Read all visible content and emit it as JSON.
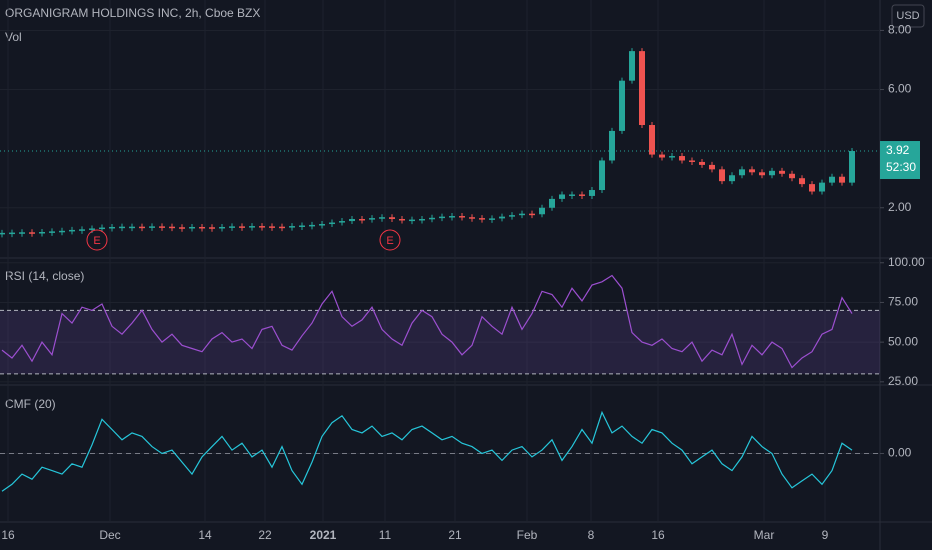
{
  "chart_data": [
    {
      "type": "candle",
      "title": "ORGANIGRAM HOLDINGS INC, 2h, Cboe BZX",
      "volume_label": "Vol",
      "currency": "USD",
      "countdown": "52:30",
      "series": [
        {
          "name": "ORGANIGRAM HOLDINGS INC",
          "up_color": "#26a69a",
          "down_color": "#ef5350",
          "values": [
            1.15,
            1.16,
            1.17,
            1.16,
            1.18,
            1.2,
            1.22,
            1.25,
            1.27,
            1.3,
            1.33,
            1.35,
            1.36,
            1.36,
            1.35,
            1.37,
            1.36,
            1.34,
            1.33,
            1.35,
            1.34,
            1.33,
            1.35,
            1.37,
            1.36,
            1.38,
            1.37,
            1.36,
            1.35,
            1.38,
            1.4,
            1.42,
            1.45,
            1.5,
            1.55,
            1.62,
            1.6,
            1.65,
            1.68,
            1.62,
            1.58,
            1.6,
            1.62,
            1.66,
            1.7,
            1.72,
            1.68,
            1.65,
            1.62,
            1.64,
            1.7,
            1.75,
            1.8,
            1.78,
            2.0,
            2.3,
            2.45,
            2.45,
            2.4,
            2.6,
            3.6,
            4.6,
            6.3,
            7.3,
            4.8,
            3.8,
            3.7,
            3.75,
            3.6,
            3.55,
            3.45,
            3.3,
            2.9,
            3.1,
            3.3,
            3.2,
            3.1,
            3.25,
            3.15,
            3.0,
            2.8,
            2.55,
            2.85,
            3.05,
            2.85,
            3.92
          ]
        }
      ],
      "earnings_markers": [
        {
          "x": 9.5,
          "label": "E"
        },
        {
          "x": 38.8,
          "label": "E"
        }
      ],
      "xlim": [
        0,
        86
      ],
      "ylim": [
        0.3,
        9.03
      ],
      "yticks": [
        {
          "value": 2,
          "label": "2.00"
        },
        {
          "value": 6,
          "label": "6.00"
        },
        {
          "value": 8,
          "label": "8.00"
        }
      ]
    },
    {
      "type": "line",
      "title": "RSI (14, close)",
      "series": [
        {
          "name": "RSI",
          "color": "#9c4fd0",
          "values": [
            45,
            40,
            48,
            38,
            50,
            42,
            68,
            62,
            72,
            70,
            74,
            60,
            55,
            62,
            70,
            58,
            50,
            55,
            48,
            46,
            44,
            52,
            56,
            50,
            52,
            46,
            58,
            60,
            48,
            45,
            54,
            62,
            74,
            82,
            66,
            60,
            64,
            72,
            58,
            52,
            48,
            62,
            70,
            66,
            55,
            50,
            42,
            48,
            66,
            60,
            55,
            72,
            58,
            68,
            82,
            80,
            72,
            84,
            76,
            86,
            88,
            92,
            84,
            56,
            50,
            48,
            52,
            46,
            44,
            50,
            38,
            45,
            42,
            55,
            36,
            48,
            42,
            50,
            46,
            34,
            40,
            44,
            55,
            58,
            78,
            68
          ]
        }
      ],
      "bands": [
        30,
        70
      ],
      "band_color": "rgba(126,87,194,0.18)",
      "xlim": [
        0,
        86
      ],
      "ylim": [
        23,
        103
      ],
      "yticks": [
        {
          "value": 100,
          "label": "100.00"
        },
        {
          "value": 75,
          "label": "75.00"
        },
        {
          "value": 50,
          "label": "50.00"
        },
        {
          "value": 25,
          "label": "25.00"
        }
      ]
    },
    {
      "type": "line",
      "title": "CMF (20)",
      "series": [
        {
          "name": "CMF",
          "color": "#26c6da",
          "values": [
            -0.22,
            -0.18,
            -0.12,
            -0.15,
            -0.08,
            -0.1,
            -0.12,
            -0.06,
            -0.08,
            0.05,
            0.2,
            0.14,
            0.08,
            0.12,
            0.1,
            0.04,
            0.0,
            0.02,
            -0.05,
            -0.12,
            -0.02,
            0.04,
            0.1,
            0.02,
            0.06,
            -0.02,
            0.02,
            -0.08,
            0.04,
            -0.1,
            -0.18,
            -0.05,
            0.1,
            0.18,
            0.22,
            0.14,
            0.12,
            0.16,
            0.1,
            0.12,
            0.08,
            0.14,
            0.16,
            0.12,
            0.08,
            0.1,
            0.06,
            0.04,
            0.0,
            0.02,
            -0.04,
            0.02,
            0.04,
            -0.02,
            0.02,
            0.08,
            -0.04,
            0.04,
            0.14,
            0.06,
            0.24,
            0.12,
            0.16,
            0.1,
            0.06,
            0.14,
            0.12,
            0.06,
            0.02,
            -0.06,
            -0.02,
            0.02,
            -0.06,
            -0.1,
            -0.02,
            0.1,
            0.04,
            0.0,
            -0.12,
            -0.2,
            -0.16,
            -0.12,
            -0.18,
            -0.1,
            0.06,
            0.02
          ]
        }
      ],
      "zero_line": 0,
      "xlim": [
        0,
        86
      ],
      "ylim": [
        -0.4,
        0.4
      ],
      "yticks": [
        {
          "value": 0,
          "label": "0.00"
        }
      ],
      "xticks": [
        {
          "value": 0.6,
          "label": "16"
        },
        {
          "value": 10.8,
          "label": "Dec"
        },
        {
          "value": 20.3,
          "label": "14"
        },
        {
          "value": 26.3,
          "label": "22"
        },
        {
          "value": 32.1,
          "label": "2021"
        },
        {
          "value": 38.3,
          "label": "11"
        },
        {
          "value": 45.3,
          "label": "21"
        },
        {
          "value": 52.5,
          "label": "Feb"
        },
        {
          "value": 58.9,
          "label": "8"
        },
        {
          "value": 65.6,
          "label": "16"
        },
        {
          "value": 76.2,
          "label": "Mar"
        },
        {
          "value": 82.3,
          "label": "9"
        }
      ]
    }
  ]
}
